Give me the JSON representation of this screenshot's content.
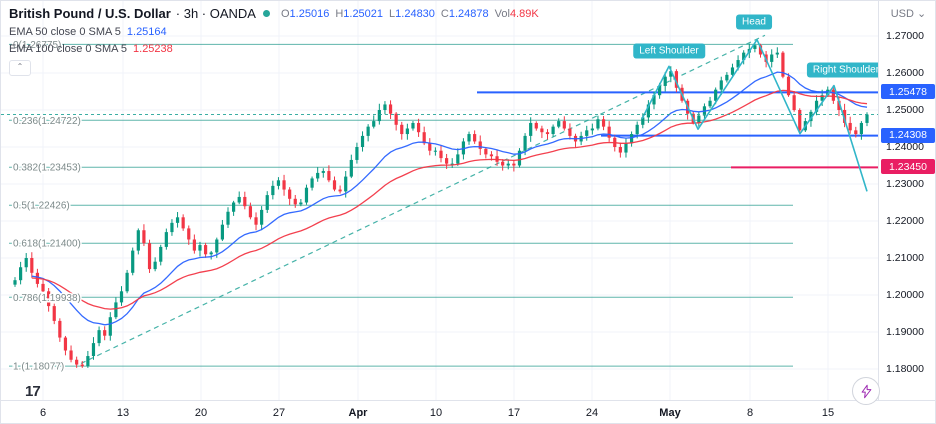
{
  "app": {
    "background": "#ffffff",
    "up_color": "#089981",
    "down_color": "#f23645",
    "accent_blue": "#2962ff",
    "cyan": "#31b6c9"
  },
  "header": {
    "symbol_title": "British Pound / U.S. Dollar",
    "meta": "· 3h · OANDA",
    "ohlc": [
      {
        "label": "O",
        "value": "1.25016"
      },
      {
        "label": "H",
        "value": "1.25021"
      },
      {
        "label": "L",
        "value": "1.24830"
      },
      {
        "label": "C",
        "value": "1.24878"
      }
    ],
    "volume": {
      "label": "Vol",
      "value": "4.89K"
    },
    "indicators": [
      {
        "name": "EMA 50 close 0 SMA 5",
        "value": "1.25164",
        "color": "#2962ff"
      },
      {
        "name": "EMA 100 close 0 SMA 5",
        "value": "1.25238",
        "color": "#f23645"
      }
    ],
    "collapse_icon": "⌃"
  },
  "price_axis": {
    "currency": "USD",
    "chevron": "⌄",
    "ticks": [
      {
        "text": "1.27000",
        "price": 1.27
      },
      {
        "text": "1.26000",
        "price": 1.26
      },
      {
        "text": "1.25000",
        "price": 1.25
      },
      {
        "text": "1.24000",
        "price": 1.24
      },
      {
        "text": "1.23000",
        "price": 1.23
      },
      {
        "text": "1.22000",
        "price": 1.22
      },
      {
        "text": "1.21000",
        "price": 1.21
      },
      {
        "text": "1.20000",
        "price": 1.2
      },
      {
        "text": "1.19000",
        "price": 1.19
      },
      {
        "text": "1.18000",
        "price": 1.18
      }
    ]
  },
  "time_axis": {
    "ticks": [
      {
        "text": "6",
        "x": 42
      },
      {
        "text": "13",
        "x": 122
      },
      {
        "text": "20",
        "x": 200
      },
      {
        "text": "27",
        "x": 278
      },
      {
        "text": "Apr",
        "x": 357,
        "bold": true
      },
      {
        "text": "10",
        "x": 435
      },
      {
        "text": "17",
        "x": 513
      },
      {
        "text": "24",
        "x": 591
      },
      {
        "text": "May",
        "x": 669,
        "bold": true
      },
      {
        "text": "8",
        "x": 749
      },
      {
        "text": "15",
        "x": 827
      }
    ]
  },
  "footer": {
    "logo_text": "17"
  },
  "chart_data": {
    "type": "candlestick",
    "title": "British Pound / U.S. Dollar, 3h, OANDA",
    "current_bar": {
      "open": 1.25016,
      "high": 1.25021,
      "low": 1.2483,
      "close": 1.24878,
      "volume": "4.89K"
    },
    "y_axis": {
      "price_top": 1.27,
      "price_bottom": 1.18,
      "y_top": 35,
      "y_bottom": 368,
      "tick_step": 0.01
    },
    "x_range": [
      14,
      866
    ],
    "closes": [
      1.204,
      1.2075,
      1.21,
      1.206,
      1.203,
      1.201,
      1.197,
      1.193,
      1.1885,
      1.185,
      1.1825,
      1.1812,
      1.18077,
      1.1835,
      1.187,
      1.1905,
      1.189,
      1.194,
      1.198,
      1.201,
      1.206,
      1.212,
      1.2175,
      1.214,
      1.207,
      1.209,
      1.213,
      1.217,
      1.2195,
      1.221,
      1.218,
      1.215,
      1.212,
      1.2135,
      1.211,
      1.2115,
      1.215,
      1.219,
      1.2225,
      1.225,
      1.2265,
      1.224,
      1.221,
      1.219,
      1.223,
      1.227,
      1.2295,
      1.231,
      1.2285,
      1.226,
      1.2245,
      1.225,
      1.229,
      1.2315,
      1.233,
      1.2335,
      1.231,
      1.2285,
      1.228,
      1.232,
      1.2365,
      1.24,
      1.243,
      1.2455,
      1.247,
      1.25,
      1.2515,
      1.249,
      1.246,
      1.2435,
      1.245,
      1.2465,
      1.244,
      1.241,
      1.239,
      1.239,
      1.237,
      1.2355,
      1.2355,
      1.238,
      1.2415,
      1.2435,
      1.2415,
      1.2395,
      1.238,
      1.2375,
      1.236,
      1.235,
      1.2355,
      1.235,
      1.239,
      1.243,
      1.2465,
      1.245,
      1.244,
      1.2435,
      1.2455,
      1.247,
      1.245,
      1.243,
      1.2415,
      1.243,
      1.2445,
      1.245,
      1.2475,
      1.2455,
      1.2425,
      1.24,
      1.2385,
      1.241,
      1.2435,
      1.246,
      1.248,
      1.2515,
      1.254,
      1.2565,
      1.259,
      1.2605,
      1.256,
      1.2525,
      1.249,
      1.2465,
      1.2485,
      1.251,
      1.2525,
      1.2555,
      1.258,
      1.2595,
      1.2615,
      1.2635,
      1.2655,
      1.2665,
      1.2675,
      1.265,
      1.263,
      1.265,
      1.2655,
      1.259,
      1.254,
      1.25,
      1.2445,
      1.247,
      1.2495,
      1.2525,
      1.254,
      1.2555,
      1.2525,
      1.25,
      1.2465,
      1.2445,
      1.2435,
      1.2465,
      1.24878
    ],
    "fib_levels": [
      {
        "label": "0(1.26775)",
        "price": 1.26775
      },
      {
        "label": "0.236(1.24722)",
        "price": 1.24722
      },
      {
        "label": "0.382(1.23453)",
        "price": 1.23453
      },
      {
        "label": "0.5(1.22426)",
        "price": 1.22426
      },
      {
        "label": "0.618(1.21400)",
        "price": 1.214
      },
      {
        "label": "0.786(1.19938)",
        "price": 1.19938
      },
      {
        "label": "1.(1.18077)",
        "price": 1.18077
      }
    ],
    "hlines": [
      {
        "price": 1.25478,
        "color": "#2962ff",
        "x_start": 476,
        "width": 2
      },
      {
        "price": 1.24308,
        "color": "#2962ff",
        "x_start": 600,
        "width": 2
      },
      {
        "price": 1.2345,
        "color": "#e91e63",
        "x_start": 730,
        "width": 2
      }
    ],
    "axis_price_labels": [
      {
        "text": "1.25478",
        "price": 1.25478,
        "color": "#2962ff"
      },
      {
        "text": "1.24308",
        "price": 1.24308,
        "color": "#2962ff"
      },
      {
        "text": "1.23450",
        "price": 1.2345,
        "color": "#e91e63"
      }
    ],
    "pattern": {
      "name": "head-and-shoulders",
      "color": "#31b6c9",
      "points": [
        {
          "x": 641,
          "price": 1.2476
        },
        {
          "x": 668,
          "price": 1.2618
        },
        {
          "x": 697,
          "price": 1.2448
        },
        {
          "x": 756,
          "price": 1.269
        },
        {
          "x": 799,
          "price": 1.2436
        },
        {
          "x": 833,
          "price": 1.2566
        },
        {
          "x": 866,
          "price": 1.228
        }
      ],
      "labels": [
        {
          "text": "Left Shoulder",
          "x": 668,
          "price": 1.266
        },
        {
          "text": "Head",
          "x": 753,
          "price": 1.2737
        },
        {
          "text": "Right Shoulder",
          "x": 845,
          "price": 1.2608
        }
      ]
    },
    "trendline": {
      "x1": 80,
      "price1": 1.1815,
      "x2": 764,
      "price2": 1.2702,
      "color": "#26a69a",
      "style": "dashed"
    },
    "price_line": {
      "price": 1.24878,
      "color": "#26a69a",
      "style": "dashed"
    },
    "emas": [
      {
        "label": "EMA 50",
        "render_period": 18,
        "value": 1.25164,
        "color": "#2962ff"
      },
      {
        "label": "EMA 100",
        "render_period": 36,
        "value": 1.25238,
        "color": "#f23645"
      }
    ],
    "grid_color": "#f0f3fa",
    "fib_line_color": "#2a9d8f"
  }
}
